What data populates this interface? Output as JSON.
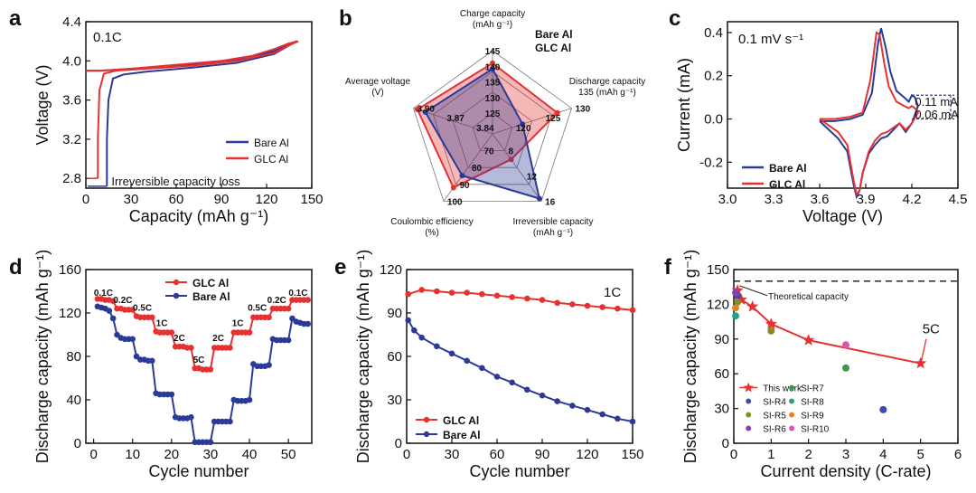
{
  "colors": {
    "red": "#e53131",
    "blue": "#2b3a96",
    "black": "#111111"
  },
  "chart_data": [
    {
      "id": "a",
      "panel": "a",
      "type": "line",
      "xlabel": "Capacity (mAh g⁻¹)",
      "ylabel": "Voltage (V)",
      "xlim": [
        0,
        150
      ],
      "ylim": [
        2.7,
        4.4
      ],
      "xticks": [
        0,
        30,
        60,
        90,
        120,
        150
      ],
      "xtick_labels": [
        "0",
        "30",
        "60",
        "90",
        "120",
        "150"
      ],
      "yticks": [
        2.8,
        3.2,
        3.6,
        4.0,
        4.4
      ],
      "ytick_labels": [
        "2.8",
        "3.2",
        "3.6",
        "4.0",
        "4.4"
      ],
      "note": "0.1C",
      "annotation": "Irreversible capacity loss",
      "series": [
        {
          "name": "Bare Al",
          "color": "#2b3a96",
          "charge_x": [
            0,
            4,
            10,
            30,
            60,
            90,
            110,
            125,
            135,
            140
          ],
          "charge_y": [
            3.9,
            3.9,
            3.9,
            3.92,
            3.95,
            3.99,
            4.04,
            4.1,
            4.17,
            4.2
          ],
          "discharge_x": [
            140,
            134,
            125,
            100,
            70,
            40,
            25,
            18,
            15,
            14,
            14
          ],
          "discharge_y": [
            4.2,
            4.15,
            4.07,
            3.98,
            3.93,
            3.89,
            3.86,
            3.82,
            3.6,
            3.2,
            2.72
          ]
        },
        {
          "name": "GLC Al",
          "color": "#e53131",
          "charge_x": [
            0,
            4,
            10,
            30,
            60,
            90,
            110,
            125,
            135,
            141
          ],
          "charge_y": [
            3.9,
            3.9,
            3.9,
            3.92,
            3.96,
            4.0,
            4.05,
            4.12,
            4.18,
            4.2
          ],
          "discharge_x": [
            141,
            135,
            125,
            100,
            70,
            40,
            20,
            12,
            9,
            8,
            8
          ],
          "discharge_y": [
            4.2,
            4.16,
            4.08,
            4.0,
            3.95,
            3.92,
            3.9,
            3.87,
            3.7,
            3.2,
            2.8
          ]
        }
      ]
    },
    {
      "id": "b",
      "panel": "b",
      "type": "radar",
      "axes": [
        {
          "label": "Charge capacity",
          "unit": "(mAh g⁻¹)",
          "ticks": [
            "145",
            "140",
            "135",
            "130",
            "125"
          ]
        },
        {
          "label": "Discharge capacity",
          "unit": "135 (mAh g⁻¹)",
          "ticks": [
            "130",
            "125",
            "120"
          ]
        },
        {
          "label": "Irreversible capacity",
          "unit": "(mAh g⁻¹)",
          "ticks": [
            "16",
            "12",
            "8"
          ]
        },
        {
          "label": "Coulombic efficiency",
          "unit": "(%)",
          "ticks": [
            "100",
            "90",
            "80",
            "70"
          ]
        },
        {
          "label": "Average voltage",
          "unit": "(V)",
          "ticks": [
            "3.90",
            "3.87",
            "3.84"
          ]
        }
      ],
      "series": [
        {
          "name": "Bare Al",
          "color": "#2b3a96",
          "values": [
            0.78,
            0.38,
            0.96,
            0.62,
            0.85
          ]
        },
        {
          "name": "GLC Al",
          "color": "#e53131",
          "values": [
            0.85,
            0.82,
            0.38,
            0.8,
            0.95
          ]
        }
      ]
    },
    {
      "id": "c",
      "panel": "c",
      "type": "line",
      "xlabel": "Voltage (V)",
      "ylabel": "Current (mA)",
      "xlim": [
        3.0,
        4.5
      ],
      "ylim": [
        -0.32,
        0.45
      ],
      "xticks": [
        3.0,
        3.3,
        3.6,
        3.9,
        4.2,
        4.5
      ],
      "xtick_labels": [
        "3.0",
        "3.3",
        "3.6",
        "3.9",
        "4.2",
        "4.5"
      ],
      "yticks": [
        -0.2,
        0.0,
        0.2,
        0.4
      ],
      "ytick_labels": [
        "-0.2",
        "0.0",
        "0.2",
        "0.4"
      ],
      "note": "0.1 mV s⁻¹",
      "annotations": [
        "0.11 mA",
        "0.06 mA"
      ],
      "series": [
        {
          "name": "Bare Al",
          "color": "#2b3a96",
          "x": [
            3.6,
            3.7,
            3.8,
            3.88,
            3.94,
            3.98,
            4.0,
            4.03,
            4.06,
            4.1,
            4.15,
            4.18,
            4.2,
            4.22,
            4.24,
            4.2,
            4.16,
            4.12,
            4.08,
            4.04,
            4.0,
            3.96,
            3.92,
            3.88,
            3.86,
            3.84,
            3.82,
            3.78,
            3.72,
            3.66,
            3.6
          ],
          "y": [
            -0.01,
            -0.01,
            0.0,
            0.02,
            0.12,
            0.35,
            0.42,
            0.33,
            0.22,
            0.13,
            0.1,
            0.08,
            0.11,
            0.1,
            0.06,
            -0.02,
            -0.06,
            -0.02,
            -0.05,
            -0.08,
            -0.09,
            -0.12,
            -0.16,
            -0.25,
            -0.33,
            -0.36,
            -0.3,
            -0.15,
            -0.09,
            -0.05,
            -0.01
          ]
        },
        {
          "name": "GLC Al",
          "color": "#e53131",
          "x": [
            3.6,
            3.7,
            3.8,
            3.88,
            3.93,
            3.97,
            3.99,
            4.02,
            4.05,
            4.1,
            4.15,
            4.18,
            4.2,
            4.22,
            4.24,
            4.2,
            4.16,
            4.12,
            4.08,
            4.04,
            4.0,
            3.96,
            3.92,
            3.88,
            3.86,
            3.84,
            3.82,
            3.78,
            3.72,
            3.66,
            3.6
          ],
          "y": [
            0.0,
            0.0,
            0.01,
            0.03,
            0.18,
            0.4,
            0.39,
            0.26,
            0.15,
            0.08,
            0.06,
            0.05,
            0.06,
            0.05,
            0.03,
            -0.02,
            -0.05,
            -0.02,
            -0.04,
            -0.06,
            -0.07,
            -0.1,
            -0.15,
            -0.25,
            -0.33,
            -0.35,
            -0.28,
            -0.12,
            -0.06,
            -0.03,
            0.0
          ]
        }
      ]
    },
    {
      "id": "d",
      "panel": "d",
      "type": "scatter",
      "xlabel": "Cycle number",
      "ylabel": "Discharge capacity (mAh g⁻¹)",
      "xlim": [
        -2,
        56
      ],
      "ylim": [
        0,
        160
      ],
      "xticks": [
        0,
        10,
        20,
        30,
        40,
        50
      ],
      "xtick_labels": [
        "0",
        "10",
        "20",
        "30",
        "40",
        "50"
      ],
      "yticks": [
        0,
        40,
        80,
        120,
        160
      ],
      "ytick_labels": [
        "0",
        "40",
        "80",
        "120",
        "160"
      ],
      "rate_labels": [
        "0.1C",
        "0.2C",
        "0.5C",
        "1C",
        "2C",
        "5C",
        "2C",
        "1C",
        "0.5C",
        "0.2C",
        "0.1C"
      ],
      "rate_label_x": [
        2.5,
        7.5,
        12.5,
        17.5,
        22,
        27,
        32,
        37,
        42,
        47,
        52.5
      ],
      "rate_label_y": [
        136,
        129,
        122,
        108,
        94,
        74,
        94,
        108,
        122,
        129,
        136
      ],
      "series": [
        {
          "name": "GLC Al",
          "color": "#e53131",
          "x": [
            1,
            2,
            3,
            4,
            5,
            6,
            7,
            8,
            9,
            10,
            11,
            12,
            13,
            14,
            15,
            16,
            17,
            18,
            19,
            20,
            21,
            22,
            23,
            24,
            25,
            26,
            27,
            28,
            29,
            30,
            31,
            32,
            33,
            34,
            35,
            36,
            37,
            38,
            39,
            40,
            41,
            42,
            43,
            44,
            45,
            46,
            47,
            48,
            49,
            50,
            51,
            52,
            53,
            54,
            55
          ],
          "y": [
            133,
            133,
            132,
            132,
            131,
            124,
            124,
            123,
            123,
            123,
            117,
            116,
            116,
            116,
            116,
            103,
            102,
            102,
            102,
            102,
            89,
            89,
            89,
            88,
            88,
            69,
            69,
            68,
            68,
            68,
            88,
            88,
            88,
            88,
            88,
            102,
            102,
            102,
            102,
            102,
            116,
            116,
            116,
            116,
            116,
            124,
            124,
            124,
            124,
            124,
            132,
            132,
            132,
            132,
            132
          ]
        },
        {
          "name": "Bare Al",
          "color": "#2b3a96",
          "x": [
            1,
            2,
            3,
            4,
            5,
            6,
            7,
            8,
            9,
            10,
            11,
            12,
            13,
            14,
            15,
            16,
            17,
            18,
            19,
            20,
            21,
            22,
            23,
            24,
            25,
            26,
            27,
            28,
            29,
            30,
            31,
            32,
            33,
            34,
            35,
            36,
            37,
            38,
            39,
            40,
            41,
            42,
            43,
            44,
            45,
            46,
            47,
            48,
            49,
            50,
            51,
            52,
            53,
            54,
            55
          ],
          "y": [
            126,
            125,
            124,
            122,
            115,
            100,
            97,
            96,
            96,
            96,
            80,
            77,
            77,
            76,
            76,
            46,
            45,
            45,
            45,
            45,
            24,
            23,
            23,
            23,
            24,
            1,
            1,
            1,
            1,
            1,
            20,
            20,
            20,
            20,
            20,
            40,
            39,
            39,
            39,
            40,
            73,
            71,
            71,
            71,
            72,
            96,
            95,
            95,
            95,
            95,
            115,
            112,
            111,
            110,
            110
          ]
        }
      ]
    },
    {
      "id": "e",
      "panel": "e",
      "type": "scatter",
      "xlabel": "Cycle number",
      "ylabel": "Discharge capacity (mAh g⁻¹)",
      "xlim": [
        0,
        150
      ],
      "ylim": [
        0,
        120
      ],
      "xticks": [
        0,
        30,
        60,
        90,
        120,
        150
      ],
      "xtick_labels": [
        "0",
        "30",
        "60",
        "90",
        "120",
        "150"
      ],
      "yticks": [
        0,
        30,
        60,
        90,
        120
      ],
      "ytick_labels": [
        "0",
        "30",
        "60",
        "90",
        "120"
      ],
      "note": "1C",
      "series": [
        {
          "name": "GLC Al",
          "color": "#e53131",
          "x": [
            1,
            10,
            20,
            30,
            40,
            50,
            60,
            70,
            80,
            90,
            100,
            110,
            120,
            130,
            140,
            150
          ],
          "y": [
            103,
            106,
            105,
            104,
            104,
            103,
            102,
            101,
            100,
            99,
            97,
            96,
            95,
            94,
            93,
            92
          ]
        },
        {
          "name": "Bare Al",
          "color": "#2b3a96",
          "x": [
            1,
            5,
            10,
            20,
            30,
            40,
            50,
            60,
            70,
            80,
            90,
            100,
            110,
            120,
            130,
            140,
            150
          ],
          "y": [
            85,
            78,
            73,
            67,
            62,
            57,
            52,
            46,
            42,
            37,
            33,
            29,
            26,
            23,
            20,
            17,
            15
          ]
        }
      ]
    },
    {
      "id": "f",
      "panel": "f",
      "type": "scatter",
      "xlabel": "Current density (C-rate)",
      "ylabel": "Discharge capacity (mAh g⁻¹)",
      "xlim": [
        0,
        6
      ],
      "ylim": [
        0,
        150
      ],
      "xticks": [
        0,
        1,
        2,
        3,
        4,
        5,
        6
      ],
      "xtick_labels": [
        "0",
        "1",
        "2",
        "3",
        "4",
        "5",
        "6"
      ],
      "yticks": [
        0,
        30,
        60,
        90,
        120,
        150
      ],
      "ytick_labels": [
        "0",
        "30",
        "60",
        "90",
        "120",
        "150"
      ],
      "theoretical_label": "Theoretical capacity",
      "theoretical_value": 140,
      "callout": "5C",
      "this_work": {
        "name": "This work",
        "color": "#e53131",
        "x": [
          0.1,
          0.2,
          0.5,
          1,
          2,
          5
        ],
        "y": [
          132,
          124,
          118,
          103,
          89,
          69
        ]
      },
      "refs": [
        {
          "name": "SI-R4",
          "color": "#3b4cb0",
          "x": [
            0.1,
            4
          ],
          "y": [
            127,
            29
          ]
        },
        {
          "name": "SI-R5",
          "color": "#8a8a2a",
          "x": [
            0.1,
            1
          ],
          "y": [
            122,
            97
          ]
        },
        {
          "name": "SI-R6",
          "color": "#8a3fb0",
          "x": [
            0.05
          ],
          "y": [
            130
          ]
        },
        {
          "name": "SI-R7",
          "color": "#3a9a4a",
          "x": [
            3
          ],
          "y": [
            65
          ]
        },
        {
          "name": "SI-R8",
          "color": "#2aa08a",
          "x": [
            0.05
          ],
          "y": [
            110
          ]
        },
        {
          "name": "SI-R9",
          "color": "#e0862a",
          "x": [
            0.05
          ],
          "y": [
            117
          ]
        },
        {
          "name": "SI-R10",
          "color": "#e04fb0",
          "x": [
            3
          ],
          "y": [
            85
          ]
        }
      ]
    }
  ]
}
